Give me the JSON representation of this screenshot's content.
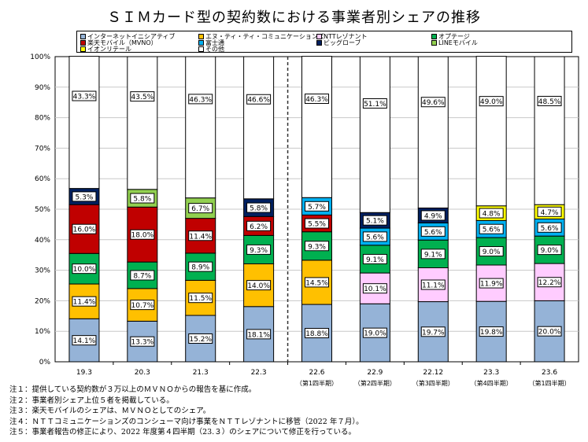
{
  "chart_data": {
    "type": "bar",
    "stacked": true,
    "title": "ＳＩＭカード型の契約数における事業者別シェアの推移",
    "xlabel": "",
    "ylabel": "",
    "ylim": [
      0,
      100
    ],
    "yticks": [
      "0%",
      "10%",
      "20%",
      "30%",
      "40%",
      "50%",
      "60%",
      "70%",
      "80%",
      "90%",
      "100%"
    ],
    "grid": true,
    "legend_position": "top",
    "categories": [
      "19.3",
      "20.3",
      "21.3",
      "22.3",
      "22.6",
      "22.9",
      "22.12",
      "23.3",
      "23.6"
    ],
    "sublabels": [
      "",
      "",
      "",
      "",
      "（第1四半期）",
      "（第2四半期）",
      "（第3四半期）",
      "（第4四半期）",
      "（第1四半期）"
    ],
    "divider_after_category": "22.3",
    "legend": [
      {
        "name": "インターネットイニシアティブ",
        "color": "#95B3D7"
      },
      {
        "name": "エヌ・ティ・ティ・コミュニケーションズ",
        "color": "#FFC000"
      },
      {
        "name": "NTTレゾナント",
        "color": "#FFCCFF"
      },
      {
        "name": "オプテージ",
        "color": "#00B050"
      },
      {
        "name": "楽天モバイル（MVNO）",
        "color": "#C00000"
      },
      {
        "name": "富士通",
        "color": "#00B0F0"
      },
      {
        "name": "ビッグローブ",
        "color": "#002060"
      },
      {
        "name": "LINEモバイル",
        "color": "#92D050"
      },
      {
        "name": "イオンリテール",
        "color": "#FFFF00"
      },
      {
        "name": "その他",
        "color": "#FFFFFF"
      }
    ],
    "stacks": [
      [
        {
          "series": "インターネットイニシアティブ",
          "value": 14.1
        },
        {
          "series": "エヌ・ティ・ティ・コミュニケーションズ",
          "value": 11.4
        },
        {
          "series": "オプテージ",
          "value": 10.0
        },
        {
          "series": "楽天モバイル（MVNO）",
          "value": 16.0
        },
        {
          "series": "ビッグローブ",
          "value": 5.3
        },
        {
          "series": "その他",
          "value": 43.3
        }
      ],
      [
        {
          "series": "インターネットイニシアティブ",
          "value": 13.3
        },
        {
          "series": "エヌ・ティ・ティ・コミュニケーションズ",
          "value": 10.7
        },
        {
          "series": "オプテージ",
          "value": 8.7
        },
        {
          "series": "楽天モバイル（MVNO）",
          "value": 18.0
        },
        {
          "series": "LINEモバイル",
          "value": 5.8
        },
        {
          "series": "その他",
          "value": 43.5
        }
      ],
      [
        {
          "series": "インターネットイニシアティブ",
          "value": 15.2
        },
        {
          "series": "エヌ・ティ・ティ・コミュニケーションズ",
          "value": 11.5
        },
        {
          "series": "オプテージ",
          "value": 8.9
        },
        {
          "series": "楽天モバイル（MVNO）",
          "value": 11.4
        },
        {
          "series": "LINEモバイル",
          "value": 6.7
        },
        {
          "series": "その他",
          "value": 46.3
        }
      ],
      [
        {
          "series": "インターネットイニシアティブ",
          "value": 18.1
        },
        {
          "series": "エヌ・ティ・ティ・コミュニケーションズ",
          "value": 14.0
        },
        {
          "series": "オプテージ",
          "value": 9.3
        },
        {
          "series": "楽天モバイル（MVNO）",
          "value": 6.2
        },
        {
          "series": "ビッグローブ",
          "value": 5.8
        },
        {
          "series": "その他",
          "value": 46.6
        }
      ],
      [
        {
          "series": "インターネットイニシアティブ",
          "value": 18.8
        },
        {
          "series": "エヌ・ティ・ティ・コミュニケーションズ",
          "value": 14.5
        },
        {
          "series": "オプテージ",
          "value": 9.3
        },
        {
          "series": "楽天モバイル（MVNO）",
          "value": 5.5
        },
        {
          "series": "富士通",
          "value": 5.7
        },
        {
          "series": "その他",
          "value": 46.3
        }
      ],
      [
        {
          "series": "インターネットイニシアティブ",
          "value": 19.0
        },
        {
          "series": "NTTレゾナント",
          "value": 10.1
        },
        {
          "series": "オプテージ",
          "value": 9.1
        },
        {
          "series": "富士通",
          "value": 5.6
        },
        {
          "series": "ビッグローブ",
          "value": 5.1
        },
        {
          "series": "その他",
          "value": 51.1
        }
      ],
      [
        {
          "series": "インターネットイニシアティブ",
          "value": 19.7
        },
        {
          "series": "NTTレゾナント",
          "value": 11.1
        },
        {
          "series": "オプテージ",
          "value": 9.1
        },
        {
          "series": "富士通",
          "value": 5.6
        },
        {
          "series": "ビッグローブ",
          "value": 4.9
        },
        {
          "series": "その他",
          "value": 49.6
        }
      ],
      [
        {
          "series": "インターネットイニシアティブ",
          "value": 19.8
        },
        {
          "series": "NTTレゾナント",
          "value": 11.9
        },
        {
          "series": "オプテージ",
          "value": 9.0
        },
        {
          "series": "富士通",
          "value": 5.6
        },
        {
          "series": "イオンリテール",
          "value": 4.8
        },
        {
          "series": "その他",
          "value": 49.0
        }
      ],
      [
        {
          "series": "インターネットイニシアティブ",
          "value": 20.0
        },
        {
          "series": "NTTレゾナント",
          "value": 12.2
        },
        {
          "series": "オプテージ",
          "value": 9.0
        },
        {
          "series": "富士通",
          "value": 5.6
        },
        {
          "series": "イオンリテール",
          "value": 4.7
        },
        {
          "series": "その他",
          "value": 48.5
        }
      ]
    ]
  },
  "footnotes": [
    "注１：提供している契約数が３万以上のＭＶＮＯからの報告を基に作成。",
    "注２：事業者別シェア上位５者を掲載している。",
    "注３：楽天モバイルのシェアは、ＭＶＮＯとしてのシェア。",
    "注４：ＮＴＴコミュニケーションズのコンシューマ向け事業をＮＴＴレゾナントに移管（2022 年７月）。",
    "注５：事業者報告の修正により、2022 年度第４四半期（23.３）のシェアについて修正を行っている。"
  ]
}
